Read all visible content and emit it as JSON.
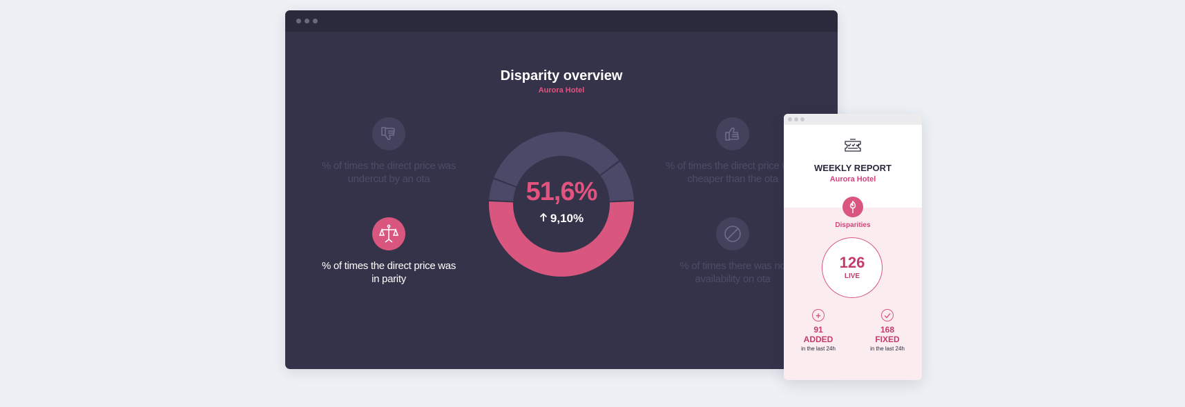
{
  "overview": {
    "title": "Disparity overview",
    "hotel": "Aurora Hotel",
    "metrics": [
      {
        "label": "% of times the direct price was undercut by an ota",
        "icon": "thumbs-down-icon",
        "active": false
      },
      {
        "label": "% of times the direct price was in parity",
        "icon": "scales-icon",
        "active": true
      },
      {
        "label": "% of times the direct price was cheaper than the ota",
        "icon": "thumbs-up-icon",
        "active": false
      },
      {
        "label": "% of times there was no availability on ota",
        "icon": "no-availability-icon",
        "active": false
      }
    ],
    "donut": {
      "percent": "51,6%",
      "change": "9,10%",
      "change_icon": "arrow-up-icon",
      "segments": [
        {
          "key": "parity",
          "value": 51.6,
          "color": "#d9567f"
        },
        {
          "key": "cheaper",
          "value": 5.0,
          "color": "#4a4967"
        },
        {
          "key": "undercut",
          "value": 34.0,
          "color": "#4a4967"
        },
        {
          "key": "no-availability",
          "value": 9.4,
          "color": "#4a4967"
        }
      ]
    }
  },
  "report": {
    "title": "WEEKLY REPORT",
    "hotel": "Aurora Hotel",
    "category": "Disparities",
    "live_count": "126",
    "live_label": "LIVE",
    "added": {
      "value": "91",
      "label": "ADDED",
      "caption": "in the last 24h"
    },
    "fixed": {
      "value": "168",
      "label": "FIXED",
      "caption": "in the last 24h"
    }
  },
  "colors": {
    "accent": "#d9567f",
    "panel": "#353349",
    "muted": "#4a4967"
  }
}
